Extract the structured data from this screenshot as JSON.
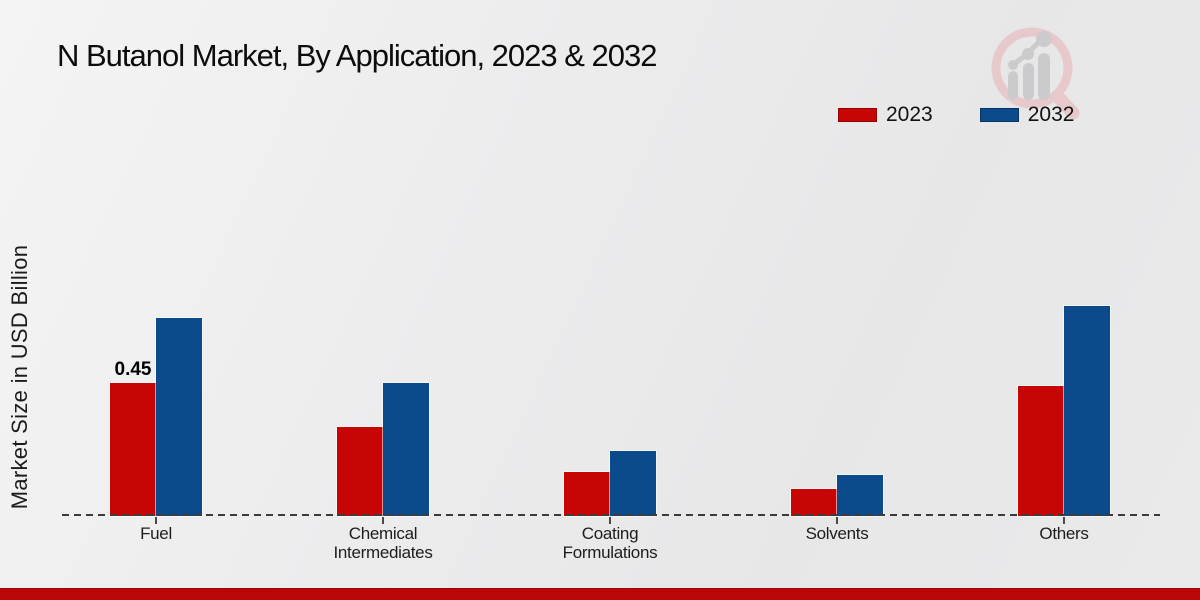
{
  "header": {
    "title": "N Butanol Market, By Application, 2023 & 2032"
  },
  "branding": {
    "logo_icon": "magnifier-bar-chart-icon",
    "logo_ring_color": "#e7c3c6",
    "logo_bar_color": "#c7c7ca"
  },
  "footer": {
    "accent_color": "#b90707"
  },
  "axis": {
    "baseline_value": 0,
    "baseline_style": "dashed"
  },
  "chart_data": {
    "type": "bar",
    "title": "N Butanol Market, By Application, 2023 & 2032",
    "xlabel": "",
    "ylabel": "Market Size in USD Billion",
    "categories": [
      "Fuel",
      "Chemical Intermediates",
      "Coating Formulations",
      "Solvents",
      "Others"
    ],
    "series": [
      {
        "name": "2023",
        "color": "#c80505",
        "values": [
          0.45,
          0.3,
          0.15,
          0.09,
          0.44
        ]
      },
      {
        "name": "2032",
        "color": "#0b4b8c",
        "values": [
          0.67,
          0.45,
          0.22,
          0.14,
          0.71
        ]
      }
    ],
    "bar_labels": [
      {
        "series_index": 0,
        "category_index": 0,
        "text": "0.45"
      }
    ],
    "ylim": [
      0,
      0.75
    ],
    "grid": false,
    "y_axis_ticks_visible": false,
    "legend_position": "top-right"
  }
}
